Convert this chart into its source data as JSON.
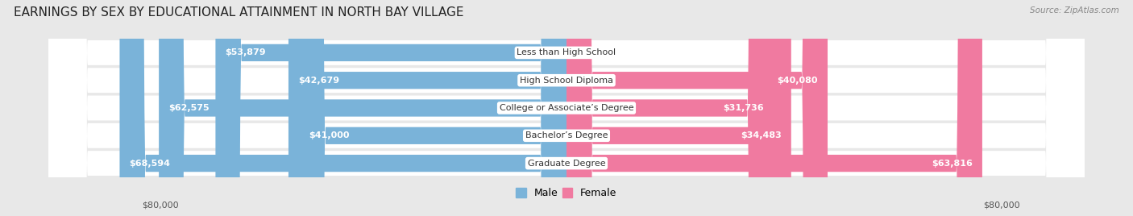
{
  "title": "EARNINGS BY SEX BY EDUCATIONAL ATTAINMENT IN NORTH BAY VILLAGE",
  "source": "Source: ZipAtlas.com",
  "categories": [
    "Less than High School",
    "High School Diploma",
    "College or Associate’s Degree",
    "Bachelor’s Degree",
    "Graduate Degree"
  ],
  "male_values": [
    53879,
    42679,
    62575,
    41000,
    68594
  ],
  "female_values": [
    0,
    40080,
    31736,
    34483,
    63816
  ],
  "male_color": "#7ab3d9",
  "female_color": "#f07aa0",
  "male_label": "Male",
  "female_label": "Female",
  "max_val": 80000,
  "bg_color": "#e8e8e8",
  "row_bg_color": "#f5f5f5",
  "axis_label_left": "$80,000",
  "axis_label_right": "$80,000",
  "title_fontsize": 11,
  "bar_fontsize": 8,
  "category_fontsize": 8
}
